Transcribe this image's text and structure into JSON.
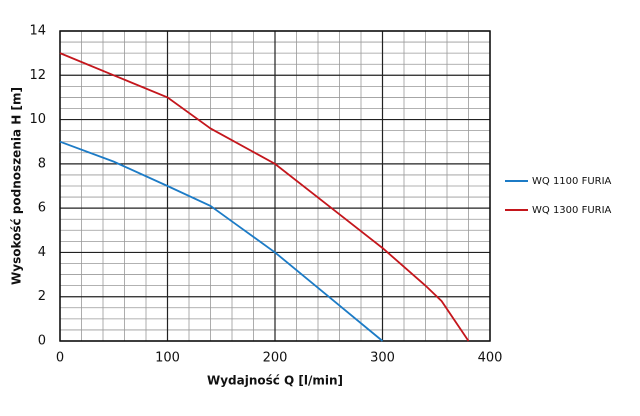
{
  "chart_data": {
    "type": "line",
    "x_label": "Wydajność Q [l/min]",
    "y_label": "Wysokość podnoszenia H [m]",
    "xlim": [
      0,
      400
    ],
    "xticks": [
      0,
      100,
      200,
      300,
      400
    ],
    "ylim": [
      0,
      14
    ],
    "yticks": [
      0,
      2,
      4,
      6,
      8,
      10,
      12,
      14
    ],
    "grid": true,
    "legend": "right",
    "series": [
      {
        "name": "WQ 1100 FURIA",
        "color": "#1c7bc6",
        "x": [
          0,
          50,
          100,
          140,
          160,
          200,
          250,
          300
        ],
        "values": [
          9,
          8.1,
          7,
          6.1,
          5.4,
          4,
          2,
          0
        ]
      },
      {
        "name": "WQ 1300 FURIA",
        "color": "#c4161c",
        "x": [
          0,
          50,
          100,
          140,
          200,
          250,
          300,
          340,
          355,
          380
        ],
        "values": [
          13,
          12,
          11,
          9.6,
          8,
          6.1,
          4.2,
          2.5,
          1.8,
          0
        ]
      }
    ]
  }
}
